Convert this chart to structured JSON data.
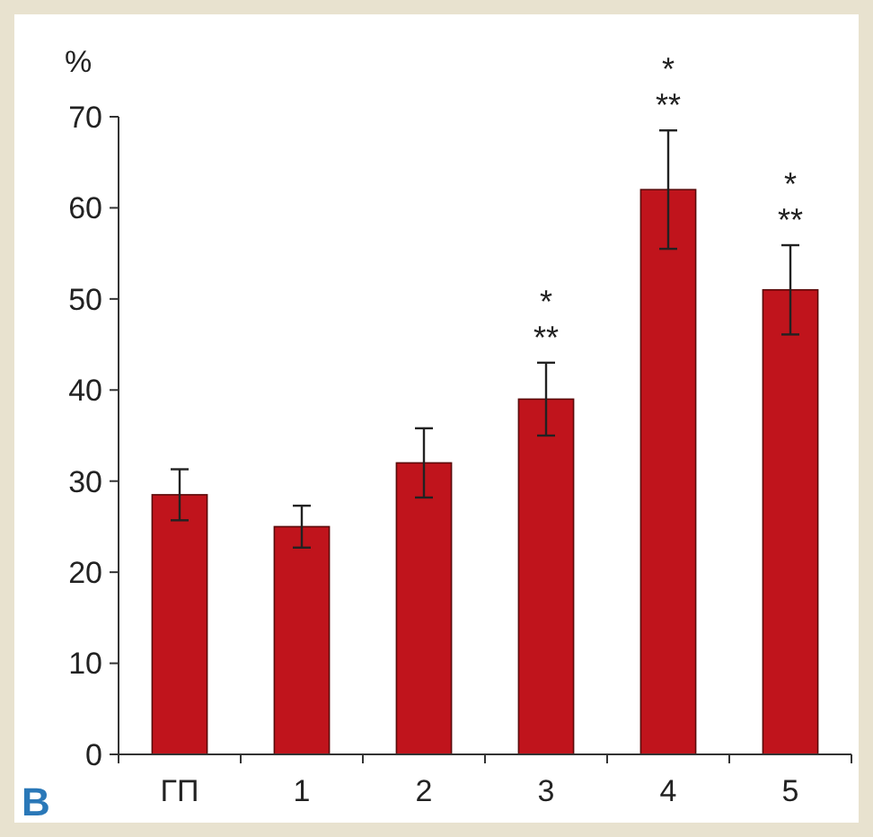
{
  "chart_data": {
    "type": "bar",
    "ylabel": "%",
    "categories": [
      "ГП",
      "1",
      "2",
      "3",
      "4",
      "5"
    ],
    "values": [
      28.5,
      25,
      32,
      39,
      62,
      51
    ],
    "errors": [
      2.8,
      2.3,
      3.8,
      4,
      6.5,
      4.9
    ],
    "color": "#c0141c",
    "ylim": [
      0,
      70
    ],
    "yticks": [
      0,
      10,
      20,
      30,
      40,
      50,
      60,
      70
    ],
    "grid": false,
    "annotations": [
      {
        "text": "*\n**",
        "x": "3",
        "y": 43
      },
      {
        "text": "*\n**",
        "x": "4",
        "y": 68.5
      },
      {
        "text": "*\n**",
        "x": "5",
        "y": 55.9
      },
      "B"
    ]
  }
}
